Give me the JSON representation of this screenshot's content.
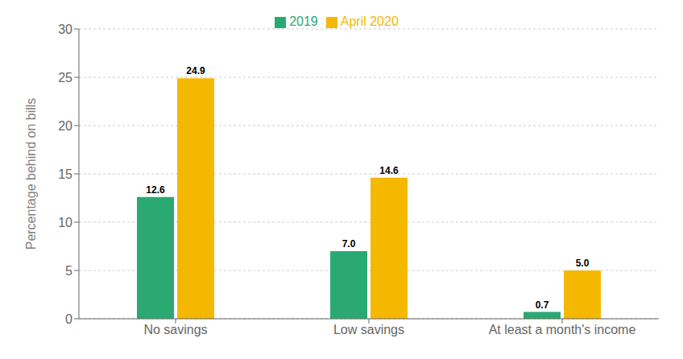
{
  "chart_data": {
    "type": "bar",
    "categories": [
      "No savings",
      "Low savings",
      "At least a month's income"
    ],
    "series": [
      {
        "name": "2019",
        "color": "#2aaa72",
        "values": [
          12.6,
          7.0,
          0.7
        ],
        "value_labels": [
          "12.6",
          "7.0",
          "0.7"
        ]
      },
      {
        "name": "April 2020",
        "color": "#f5b800",
        "values": [
          24.9,
          14.6,
          5.0
        ],
        "value_labels": [
          "24.9",
          "14.6",
          "5.0"
        ]
      }
    ],
    "ylabel": "Percentage behind on bills",
    "ylim": [
      0,
      30
    ],
    "yticks": [
      0,
      5,
      10,
      15,
      20,
      25,
      30
    ],
    "grid": true,
    "legend": "top",
    "data_labels": true
  }
}
